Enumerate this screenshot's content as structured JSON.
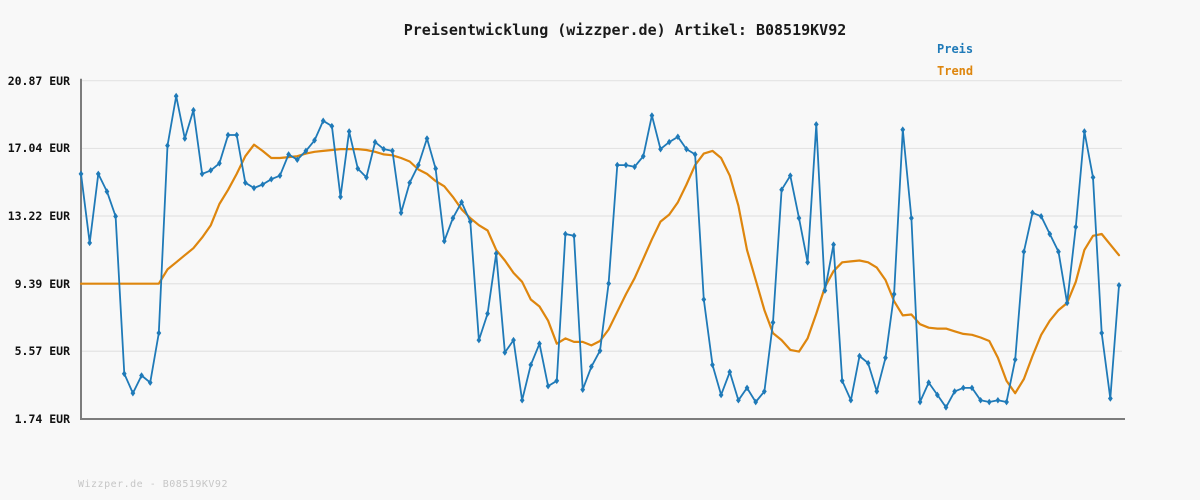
{
  "title": "Preisentwicklung (wizzper.de) Artikel: B08519KV92",
  "legend": {
    "price_label": "Preis",
    "trend_label": "Trend"
  },
  "footer": "Wizzper.de - B08519KV92",
  "colors": {
    "price": "#1f7ab8",
    "trend": "#de860e",
    "grid": "#e3e3e3",
    "spine": "#7c7c7c",
    "background": "#f8f8f8",
    "title_text": "#1a1a1a",
    "footer_text": "#c6c6c6"
  },
  "chart_data": {
    "type": "line",
    "title": "Preisentwicklung (wizzper.de) Artikel: B08519KV92",
    "xlabel": "",
    "ylabel": "",
    "ylim": [
      1.74,
      20.87
    ],
    "grid": "horizontal",
    "legend_position": "top-right",
    "yticks": [
      {
        "label": "20.87 EUR",
        "value": 20.87
      },
      {
        "label": "17.04 EUR",
        "value": 17.04
      },
      {
        "label": "13.22 EUR",
        "value": 13.22
      },
      {
        "label": "9.39 EUR",
        "value": 9.39
      },
      {
        "label": "5.57 EUR",
        "value": 5.57
      },
      {
        "label": "1.74 EUR",
        "value": 1.74
      }
    ],
    "series": [
      {
        "name": "Preis",
        "color_key": "price",
        "markers": true,
        "values": [
          15.6,
          11.7,
          15.6,
          14.6,
          13.2,
          4.3,
          3.2,
          4.2,
          3.8,
          6.6,
          17.2,
          20.0,
          17.6,
          19.2,
          15.6,
          15.8,
          16.2,
          17.8,
          17.8,
          15.1,
          14.8,
          15.0,
          15.3,
          15.5,
          16.7,
          16.4,
          16.9,
          17.5,
          18.6,
          18.3,
          14.3,
          18.0,
          15.9,
          15.4,
          17.4,
          17.0,
          16.9,
          13.4,
          15.1,
          16.1,
          17.6,
          15.9,
          11.8,
          13.1,
          14.0,
          12.9,
          6.2,
          7.7,
          11.1,
          5.5,
          6.2,
          2.8,
          4.8,
          6.0,
          3.6,
          3.9,
          12.2,
          12.1,
          3.4,
          4.7,
          5.6,
          9.4,
          16.1,
          16.1,
          16.0,
          16.6,
          18.9,
          17.0,
          17.4,
          17.7,
          17.0,
          16.7,
          8.5,
          4.8,
          3.1,
          4.4,
          2.8,
          3.5,
          2.7,
          3.3,
          7.2,
          14.7,
          15.5,
          13.1,
          10.6,
          18.4,
          9.0,
          11.6,
          3.9,
          2.8,
          5.3,
          4.9,
          3.3,
          5.2,
          8.8,
          18.1,
          13.1,
          2.7,
          3.8,
          3.1,
          2.4,
          3.3,
          3.5,
          3.5,
          2.8,
          2.7,
          2.8,
          2.7,
          5.1,
          11.2,
          13.4,
          13.2,
          12.2,
          11.2,
          8.3,
          12.6,
          18.0,
          15.4,
          6.6,
          2.9,
          9.3
        ]
      },
      {
        "name": "Trend",
        "color_key": "trend",
        "markers": false,
        "values": [
          9.39,
          9.39,
          9.39,
          9.39,
          9.39,
          9.39,
          9.39,
          9.39,
          9.39,
          9.39,
          10.2,
          10.6,
          11.0,
          11.4,
          12.0,
          12.7,
          13.9,
          14.7,
          15.6,
          16.6,
          17.25,
          16.9,
          16.5,
          16.5,
          16.55,
          16.6,
          16.75,
          16.85,
          16.9,
          16.95,
          17.0,
          17.0,
          17.0,
          16.95,
          16.85,
          16.7,
          16.65,
          16.5,
          16.3,
          15.85,
          15.6,
          15.2,
          14.9,
          14.3,
          13.6,
          13.1,
          12.7,
          12.4,
          11.3,
          10.7,
          10.0,
          9.5,
          8.5,
          8.1,
          7.3,
          6.0,
          6.3,
          6.1,
          6.1,
          5.9,
          6.15,
          6.8,
          7.8,
          8.8,
          9.7,
          10.8,
          11.9,
          12.9,
          13.3,
          14.0,
          15.0,
          16.1,
          16.75,
          16.9,
          16.5,
          15.5,
          13.8,
          11.3,
          9.6,
          7.9,
          6.6,
          6.2,
          5.65,
          5.55,
          6.3,
          7.7,
          9.2,
          10.1,
          10.6,
          10.65,
          10.7,
          10.6,
          10.3,
          9.6,
          8.4,
          7.6,
          7.65,
          7.1,
          6.9,
          6.85,
          6.85,
          6.7,
          6.55,
          6.5,
          6.35,
          6.15,
          5.2,
          3.9,
          3.2,
          4.0,
          5.3,
          6.5,
          7.3,
          7.9,
          8.3,
          9.5,
          11.3,
          12.1,
          12.2,
          11.6,
          11.0
        ]
      }
    ]
  }
}
